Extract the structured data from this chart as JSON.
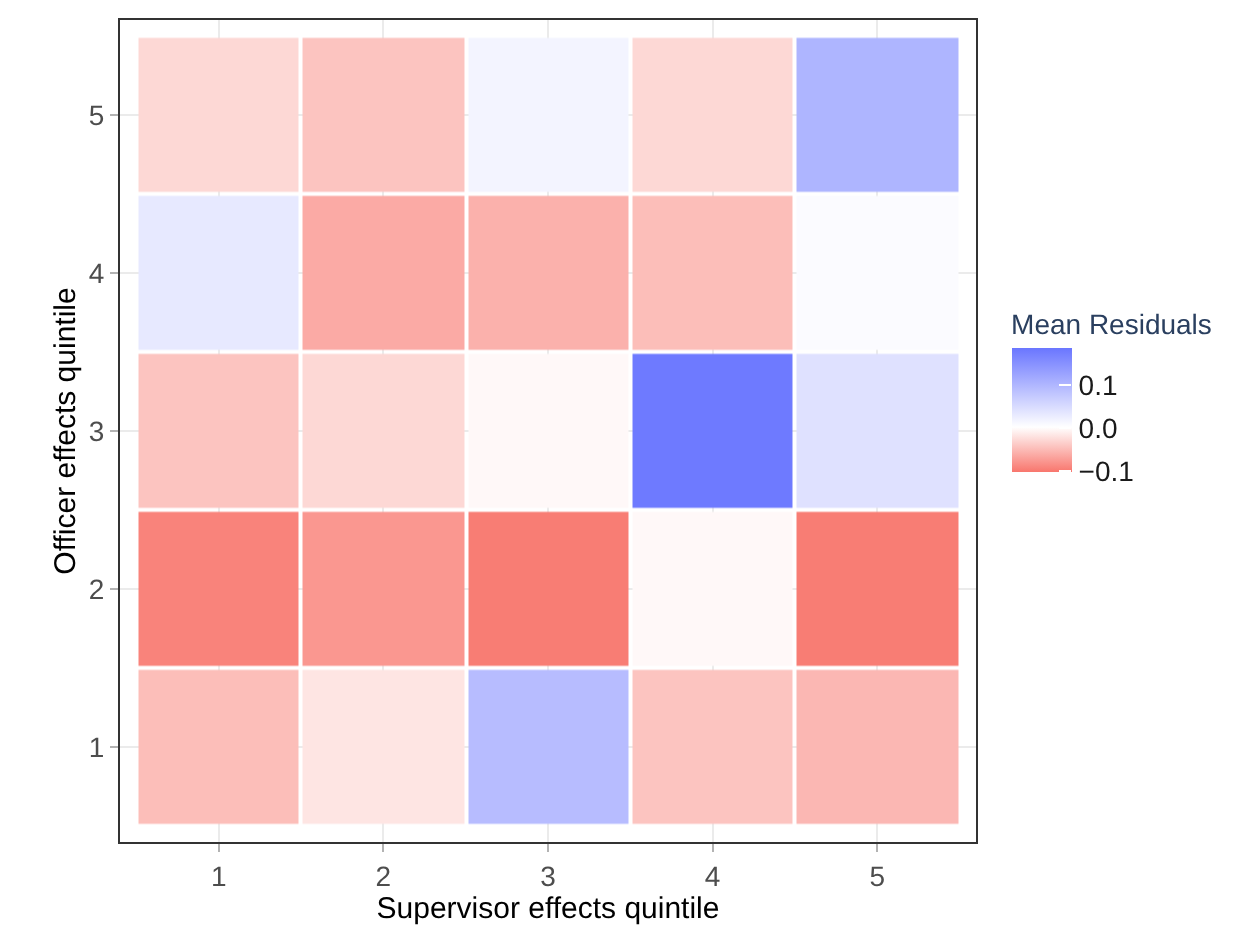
{
  "chart_data": {
    "type": "heatmap",
    "xlabel": "Supervisor effects quintile",
    "ylabel": "Officer effects quintile",
    "clabel": "Mean Residuals",
    "categories": [
      "1",
      "2",
      "3",
      "4",
      "5"
    ],
    "y_categories": [
      "5",
      "4",
      "3",
      "2",
      "1"
    ],
    "cells": [
      [
        -0.03,
        -0.045,
        0.015,
        -0.03,
        0.1
      ],
      [
        0.03,
        -0.065,
        -0.06,
        -0.05,
        0.005
      ],
      [
        -0.045,
        -0.03,
        -0.005,
        0.18,
        0.04
      ],
      [
        -0.095,
        -0.08,
        -0.1,
        -0.005,
        -0.1
      ],
      [
        -0.05,
        -0.02,
        0.09,
        -0.045,
        -0.055
      ]
    ],
    "clim": [
      -0.105,
      0.185
    ],
    "cticks": [
      {
        "value": 0.1,
        "label": "0.1"
      },
      {
        "value": 0.0,
        "label": "0.0"
      },
      {
        "value": -0.1,
        "label": "−0.1"
      }
    ],
    "grid": true
  }
}
